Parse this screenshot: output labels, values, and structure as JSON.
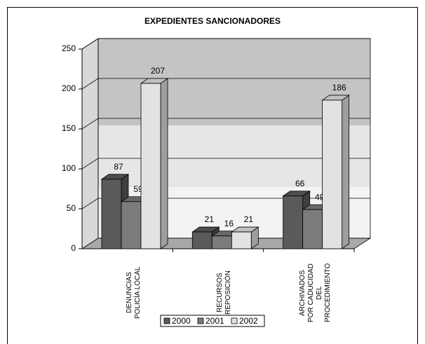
{
  "chart_data": {
    "type": "bar3d",
    "title": "EXPEDIENTES SANCIONADORES",
    "categories": [
      "DENUNCIAS\nPOLICÍA LOCAL",
      "RECURSOS\nREPOSICIÓN",
      "ARCHIVADOS\nPOR CADUCIDAD\nDEL\nPROCEDIMIENTO"
    ],
    "series": [
      {
        "name": "2000",
        "color": "#5a5a5a",
        "values": [
          87,
          21,
          66
        ]
      },
      {
        "name": "2001",
        "color": "#7c7c7c",
        "values": [
          59,
          16,
          49
        ]
      },
      {
        "name": "2002",
        "color": "#e2e2e2",
        "values": [
          207,
          21,
          186
        ]
      }
    ],
    "ylim": [
      0,
      250
    ],
    "yticks": [
      0,
      50,
      100,
      150,
      200,
      250
    ],
    "grid": true,
    "legend": "bottom"
  }
}
